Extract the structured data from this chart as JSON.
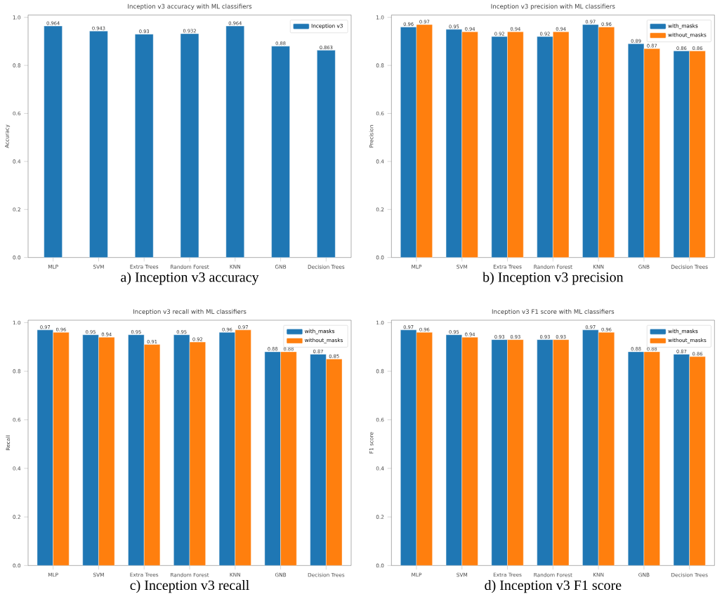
{
  "chart_data": [
    {
      "type": "bar",
      "title": "Inception v3 accuracy with ML classifiers",
      "ylabel": "Accuracy",
      "categories": [
        "MLP",
        "SVM",
        "Extra Trees",
        "Random Forest",
        "KNN",
        "GNB",
        "Decision Trees"
      ],
      "series": [
        {
          "name": "Inception v3",
          "color": "#1f77b4",
          "values": [
            0.964,
            0.943,
            0.93,
            0.932,
            0.964,
            0.88,
            0.863
          ]
        }
      ],
      "ylim": [
        0,
        1.01
      ],
      "yticks": [
        {
          "value": 0,
          "label": "0.0"
        },
        {
          "value": 0.2,
          "label": "0.2"
        },
        {
          "value": 0.4,
          "label": "0.4"
        },
        {
          "value": 0.6,
          "label": "0.6"
        },
        {
          "value": 0.8,
          "label": "0.8"
        },
        {
          "value": 1.0,
          "label": "1.0"
        }
      ],
      "data_labels": true,
      "legend": "top right",
      "annotations": [
        "a) Inception v3 accuracy"
      ]
    },
    {
      "type": "bar",
      "title": "Inception v3 precision with ML classifiers",
      "ylabel": "Precision",
      "categories": [
        "MLP",
        "SVM",
        "Extra Trees",
        "Random Forest",
        "KNN",
        "GNB",
        "Decision Trees"
      ],
      "series": [
        {
          "name": "with_masks",
          "color": "#1f77b4",
          "values": [
            0.96,
            0.95,
            0.92,
            0.92,
            0.97,
            0.89,
            0.86
          ]
        },
        {
          "name": "without_masks",
          "color": "#ff7f0e",
          "values": [
            0.97,
            0.94,
            0.94,
            0.94,
            0.96,
            0.87,
            0.86
          ]
        }
      ],
      "ylim": [
        0,
        1.01
      ],
      "yticks": [
        {
          "value": 0,
          "label": "0.0"
        },
        {
          "value": 0.2,
          "label": "0.2"
        },
        {
          "value": 0.4,
          "label": "0.4"
        },
        {
          "value": 0.6,
          "label": "0.6"
        },
        {
          "value": 0.8,
          "label": "0.8"
        },
        {
          "value": 1.0,
          "label": "1.0"
        }
      ],
      "data_labels": true,
      "legend": "top right",
      "annotations": [
        "b) Inception v3 precision"
      ]
    },
    {
      "type": "bar",
      "title": "Inception v3 recall with ML classifiers",
      "ylabel": "Recall",
      "categories": [
        "MLP",
        "SVM",
        "Extra Trees",
        "Random Forest",
        "KNN",
        "GNB",
        "Decision Trees"
      ],
      "series": [
        {
          "name": "with_masks",
          "color": "#1f77b4",
          "values": [
            0.97,
            0.95,
            0.95,
            0.95,
            0.96,
            0.88,
            0.87
          ]
        },
        {
          "name": "without_masks",
          "color": "#ff7f0e",
          "values": [
            0.96,
            0.94,
            0.91,
            0.92,
            0.97,
            0.88,
            0.85
          ]
        }
      ],
      "ylim": [
        0,
        1.01
      ],
      "yticks": [
        {
          "value": 0,
          "label": "0.0"
        },
        {
          "value": 0.2,
          "label": "0.2"
        },
        {
          "value": 0.4,
          "label": "0.4"
        },
        {
          "value": 0.6,
          "label": "0.6"
        },
        {
          "value": 0.8,
          "label": "0.8"
        },
        {
          "value": 1.0,
          "label": "1.0"
        }
      ],
      "data_labels": true,
      "legend": "top right",
      "annotations": [
        "c) Inception v3 recall"
      ]
    },
    {
      "type": "bar",
      "title": "Inception v3 F1 score with ML classifiers",
      "ylabel": "F1 score",
      "categories": [
        "MLP",
        "SVM",
        "Extra Trees",
        "Random Forest",
        "KNN",
        "GNB",
        "Decision Trees"
      ],
      "series": [
        {
          "name": "with_masks",
          "color": "#1f77b4",
          "values": [
            0.97,
            0.95,
            0.93,
            0.93,
            0.97,
            0.88,
            0.87
          ]
        },
        {
          "name": "without_masks",
          "color": "#ff7f0e",
          "values": [
            0.96,
            0.94,
            0.93,
            0.93,
            0.96,
            0.88,
            0.86
          ]
        }
      ],
      "ylim": [
        0,
        1.01
      ],
      "yticks": [
        {
          "value": 0,
          "label": "0.0"
        },
        {
          "value": 0.2,
          "label": "0.2"
        },
        {
          "value": 0.4,
          "label": "0.4"
        },
        {
          "value": 0.6,
          "label": "0.6"
        },
        {
          "value": 0.8,
          "label": "0.8"
        },
        {
          "value": 1.0,
          "label": "1.0"
        }
      ],
      "data_labels": true,
      "legend": "top right",
      "annotations": [
        "d) Inception v3 F1 score"
      ]
    }
  ]
}
